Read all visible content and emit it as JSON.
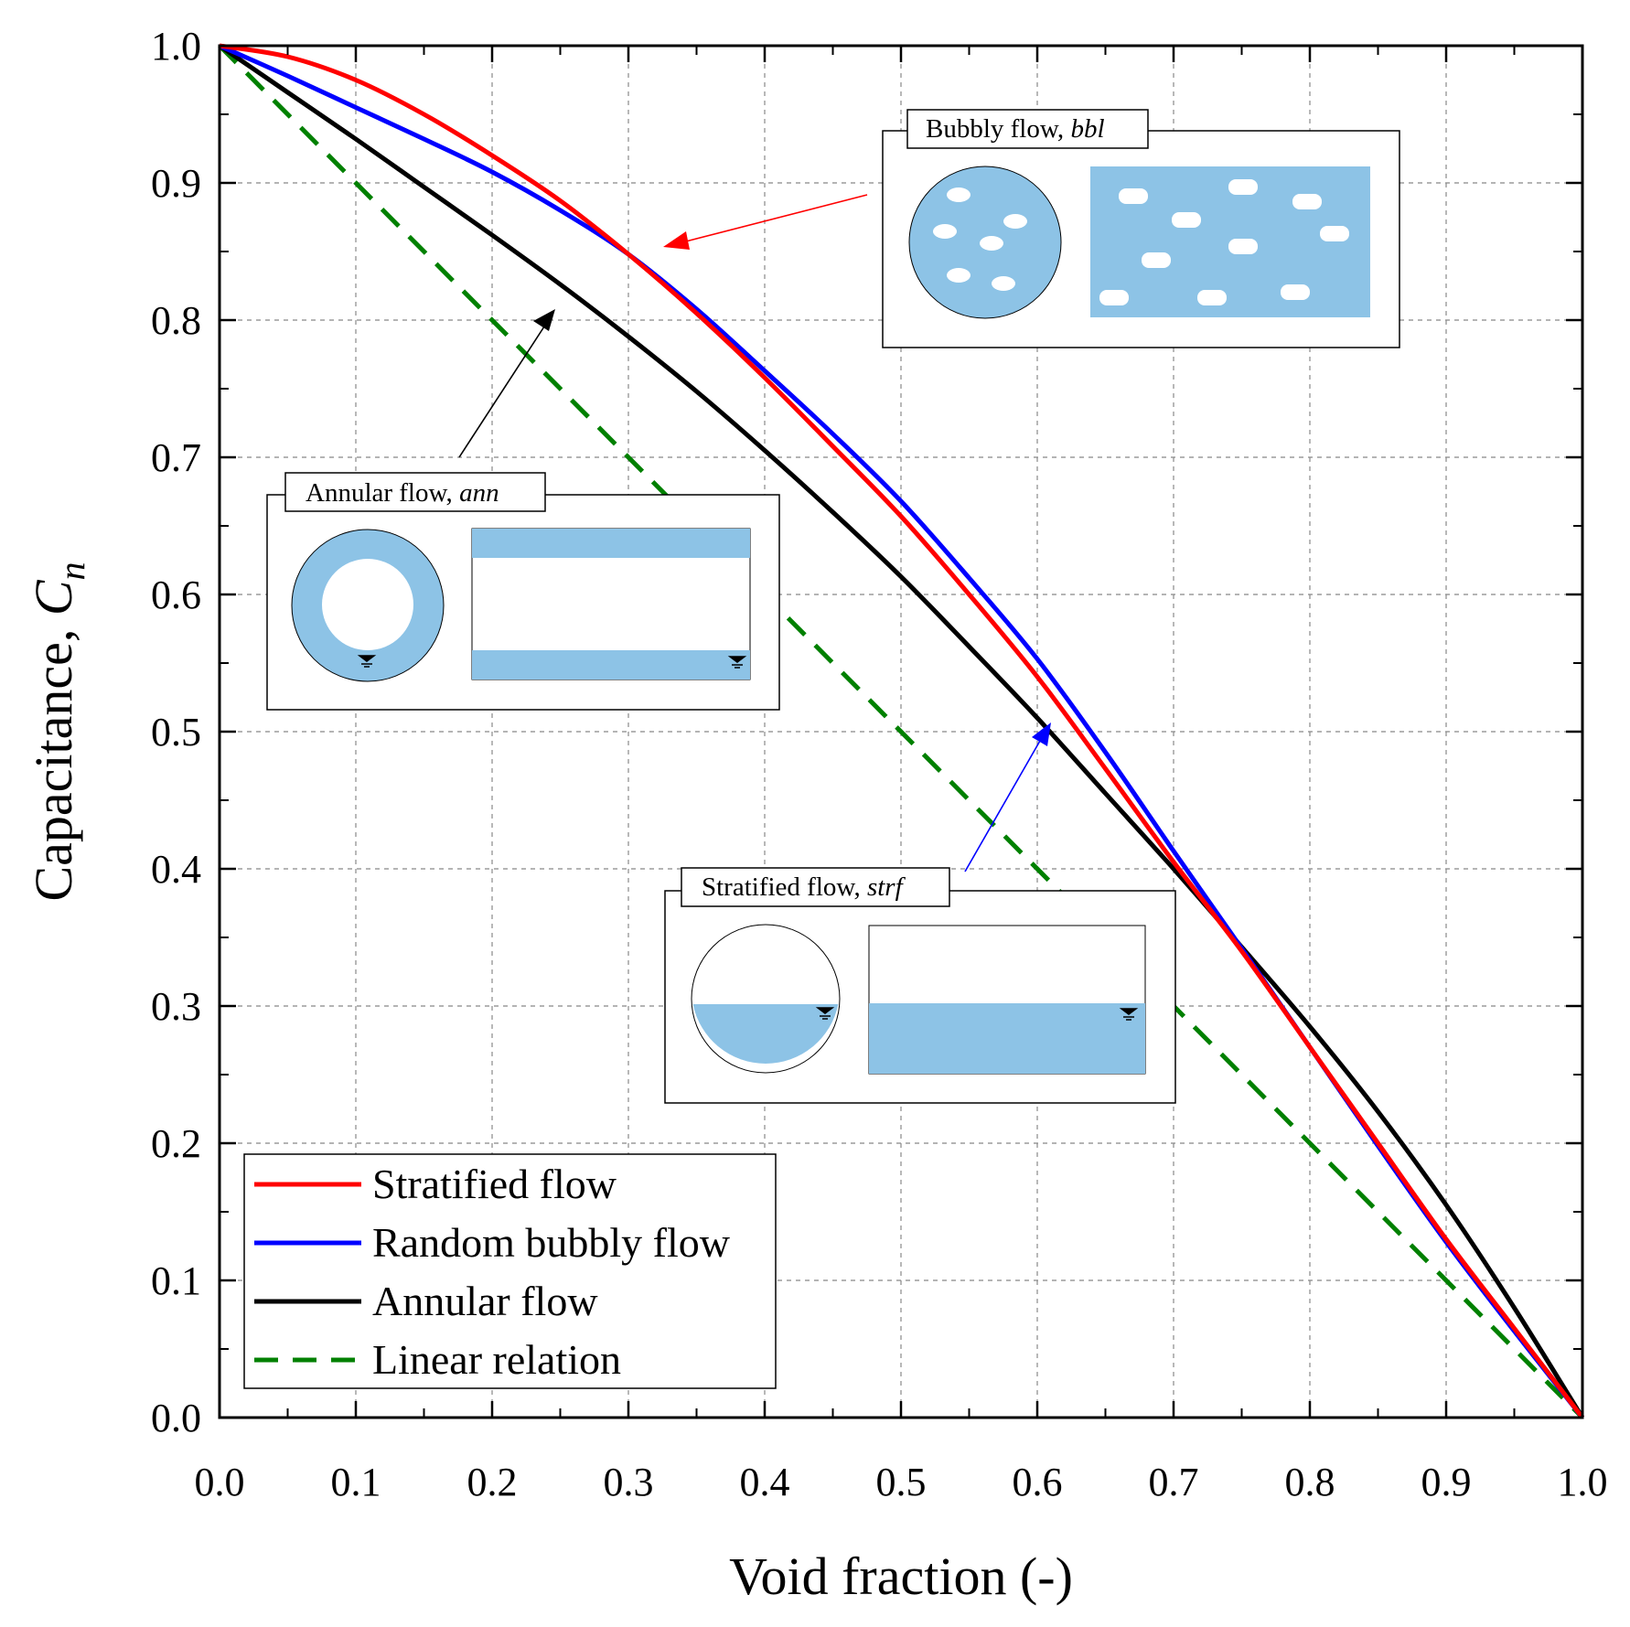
{
  "chart_data": {
    "type": "line",
    "xlabel": "Void fraction (-)",
    "ylabel_main": "Capacitance, ",
    "ylabel_symbol": "C",
    "ylabel_subscript": "n",
    "xlim": [
      0.0,
      1.0
    ],
    "ylim": [
      0.0,
      1.0
    ],
    "x_ticks": [
      "0.0",
      "0.1",
      "0.2",
      "0.3",
      "0.4",
      "0.5",
      "0.6",
      "0.7",
      "0.8",
      "0.9",
      "1.0"
    ],
    "y_ticks": [
      "0.0",
      "0.1",
      "0.2",
      "0.3",
      "0.4",
      "0.5",
      "0.6",
      "0.7",
      "0.8",
      "0.9",
      "1.0"
    ],
    "grid": true,
    "legend_position": "bottom-left",
    "series": [
      {
        "name": "Stratified flow",
        "color": "#ff0000",
        "dash": "solid",
        "x": [
          0.0,
          0.05,
          0.1,
          0.15,
          0.2,
          0.25,
          0.3,
          0.35,
          0.4,
          0.45,
          0.5,
          0.55,
          0.6,
          0.65,
          0.7,
          0.75,
          0.8,
          0.85,
          0.9,
          0.95,
          1.0
        ],
        "y": [
          1.0,
          0.992,
          0.975,
          0.95,
          0.92,
          0.887,
          0.848,
          0.805,
          0.758,
          0.708,
          0.657,
          0.6,
          0.54,
          0.473,
          0.405,
          0.34,
          0.27,
          0.2,
          0.13,
          0.065,
          0.0
        ]
      },
      {
        "name": "Random bubbly flow",
        "color": "#0000ff",
        "dash": "solid",
        "x": [
          0.0,
          0.05,
          0.1,
          0.15,
          0.2,
          0.25,
          0.3,
          0.35,
          0.4,
          0.45,
          0.5,
          0.55,
          0.6,
          0.65,
          0.7,
          0.75,
          0.8,
          0.85,
          0.9,
          0.95,
          1.0
        ],
        "y": [
          1.0,
          0.978,
          0.955,
          0.932,
          0.908,
          0.88,
          0.848,
          0.808,
          0.763,
          0.717,
          0.668,
          0.612,
          0.553,
          0.485,
          0.413,
          0.342,
          0.27,
          0.198,
          0.128,
          0.063,
          0.0
        ]
      },
      {
        "name": "Annular flow",
        "color": "#000000",
        "dash": "solid",
        "x": [
          0.0,
          0.05,
          0.1,
          0.15,
          0.2,
          0.25,
          0.3,
          0.35,
          0.4,
          0.45,
          0.5,
          0.55,
          0.6,
          0.65,
          0.7,
          0.75,
          0.8,
          0.85,
          0.9,
          0.95,
          1.0
        ],
        "y": [
          1.0,
          0.966,
          0.932,
          0.897,
          0.862,
          0.826,
          0.788,
          0.748,
          0.705,
          0.66,
          0.613,
          0.562,
          0.51,
          0.455,
          0.4,
          0.343,
          0.285,
          0.223,
          0.155,
          0.08,
          0.0
        ]
      },
      {
        "name": "Linear relation",
        "color": "#008000",
        "dash": "dashed",
        "x": [
          0.0,
          1.0
        ],
        "y": [
          1.0,
          0.0
        ]
      }
    ],
    "annotations": [
      {
        "id": "bubbly",
        "title": "Bubbly flow, ",
        "title_italic": "bbl"
      },
      {
        "id": "annular",
        "title": "Annular flow, ",
        "title_italic": "ann"
      },
      {
        "id": "stratified",
        "title": "Stratified flow, ",
        "title_italic": "strf"
      }
    ]
  },
  "colors": {
    "liquid": "#8dc3e6",
    "gas": "#ffffff",
    "grid": "#888888"
  }
}
